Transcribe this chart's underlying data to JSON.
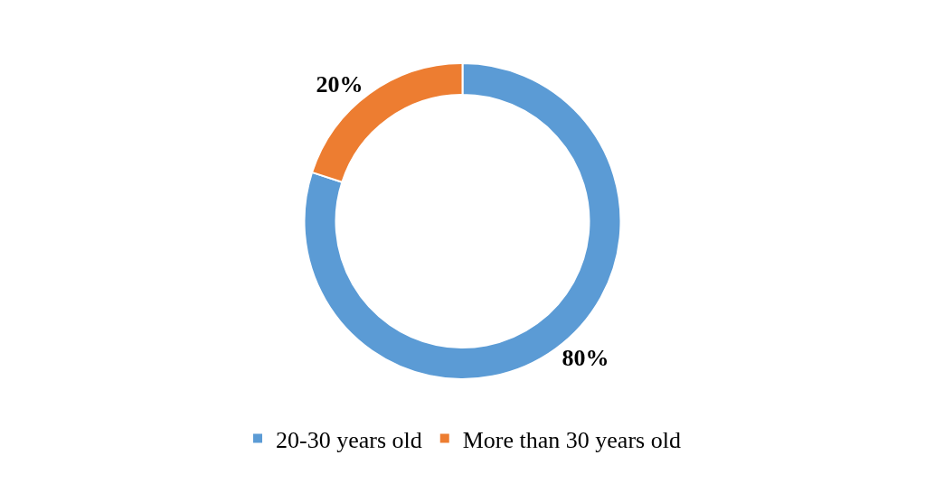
{
  "chart_data": {
    "type": "donut",
    "categories": [
      "20-30 years old",
      "More than 30 years old"
    ],
    "values": [
      80,
      20
    ],
    "colors": [
      "#5b9bd5",
      "#ed7d31"
    ],
    "value_labels": [
      "80%",
      "20%"
    ],
    "legend": "bottom"
  }
}
